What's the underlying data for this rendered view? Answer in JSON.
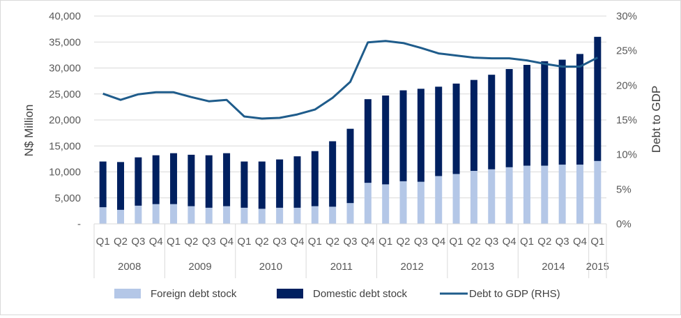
{
  "chart_data": {
    "type": "bar",
    "stacked": true,
    "categories": [
      "Q1",
      "Q2",
      "Q3",
      "Q4",
      "Q1",
      "Q2",
      "Q3",
      "Q4",
      "Q1",
      "Q2",
      "Q3",
      "Q4",
      "Q1",
      "Q2",
      "Q3",
      "Q4",
      "Q1",
      "Q2",
      "Q3",
      "Q4",
      "Q1",
      "Q2",
      "Q3",
      "Q4",
      "Q1",
      "Q2",
      "Q3",
      "Q4",
      "Q1"
    ],
    "years": [
      {
        "label": "2008",
        "quarters": 4
      },
      {
        "label": "2009",
        "quarters": 4
      },
      {
        "label": "2010",
        "quarters": 4
      },
      {
        "label": "2011",
        "quarters": 4
      },
      {
        "label": "2012",
        "quarters": 4
      },
      {
        "label": "2013",
        "quarters": 4
      },
      {
        "label": "2014",
        "quarters": 4
      },
      {
        "label": "2015",
        "quarters": 1
      }
    ],
    "series": [
      {
        "name": "Foreign debt stock",
        "kind": "bar",
        "axis": "left",
        "color": "#b4c7e7",
        "values": [
          3200,
          2700,
          3500,
          3800,
          3800,
          3400,
          3100,
          3400,
          3100,
          2900,
          3100,
          3100,
          3400,
          3300,
          4000,
          7900,
          7600,
          8200,
          8100,
          9200,
          9600,
          10200,
          10500,
          10900,
          11200,
          11200,
          11400,
          11400,
          12100
        ]
      },
      {
        "name": "Domestic debt stock",
        "kind": "bar",
        "axis": "left",
        "color": "#002060",
        "values": [
          8800,
          9200,
          9300,
          9400,
          9800,
          9900,
          10100,
          10200,
          8900,
          9100,
          9300,
          9900,
          10600,
          12600,
          14300,
          16100,
          17100,
          17500,
          17900,
          17200,
          17400,
          17500,
          18200,
          18900,
          19400,
          20100,
          20200,
          21300,
          23900
        ]
      },
      {
        "name": "Debt to GDP (RHS)",
        "kind": "line",
        "axis": "right",
        "color": "#1f5c8b",
        "values": [
          0.188,
          0.179,
          0.187,
          0.19,
          0.19,
          0.183,
          0.177,
          0.179,
          0.155,
          0.152,
          0.153,
          0.158,
          0.165,
          0.182,
          0.205,
          0.262,
          0.264,
          0.261,
          0.254,
          0.246,
          0.243,
          0.24,
          0.239,
          0.239,
          0.236,
          0.231,
          0.227,
          0.227,
          0.24
        ]
      }
    ],
    "ylabel": "N$ Million",
    "y2label": "Debt to GDP",
    "ylim": [
      0,
      40000
    ],
    "y2lim": [
      0,
      0.3
    ],
    "yticks": [
      "-",
      "5,000",
      "10,000",
      "15,000",
      "20,000",
      "25,000",
      "30,000",
      "35,000",
      "40,000"
    ],
    "y2ticks": [
      "0%",
      "5%",
      "10%",
      "15%",
      "20%",
      "25%",
      "30%"
    ],
    "grid": "horizontal",
    "legend": "bottom"
  }
}
